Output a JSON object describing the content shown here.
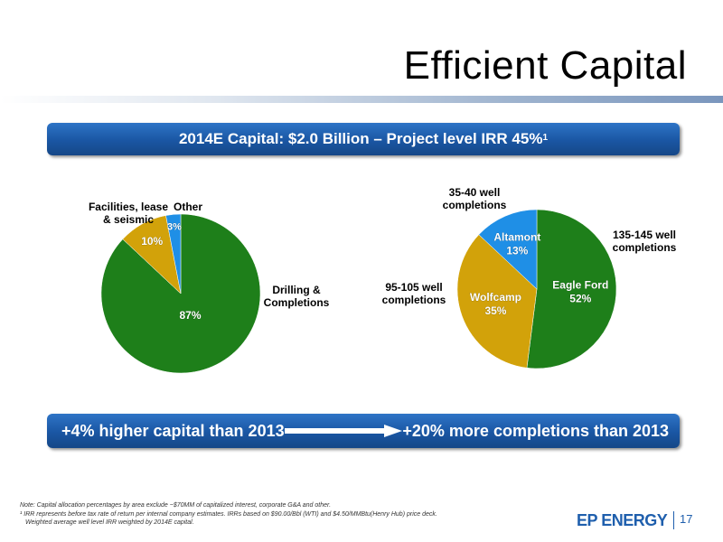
{
  "title": "Efficient Capital",
  "banner_top": {
    "text": "2014E Capital: $2.0 Billion – Project level IRR 45%",
    "superscript": "1"
  },
  "banner_bottom": {
    "left": "+4% higher capital than 2013",
    "right": "+20% more completions than 2013"
  },
  "colors": {
    "green": "#1e7f1a",
    "gold": "#d2a20a",
    "blue": "#1f8fe6",
    "banner": "#1a56a3",
    "brand": "#1f5fad"
  },
  "chart_data": [
    {
      "type": "pie",
      "title": "",
      "slices": [
        {
          "label": "Drilling & Completions",
          "value": 87,
          "display": "87%",
          "color": "#1e7f1a"
        },
        {
          "label": "Facilities, lease & seismic",
          "value": 10,
          "display": "10%",
          "color": "#d2a20a"
        },
        {
          "label": "Other",
          "value": 3,
          "display": "3%",
          "color": "#1f8fe6"
        }
      ]
    },
    {
      "type": "pie",
      "title": "",
      "slices": [
        {
          "label": "Eagle Ford",
          "value": 52,
          "display": "52%",
          "annotation": "135-145 well completions",
          "color": "#1e7f1a"
        },
        {
          "label": "Wolfcamp",
          "value": 35,
          "display": "35%",
          "annotation": "95-105 well completions",
          "color": "#d2a20a"
        },
        {
          "label": "Altamont",
          "value": 13,
          "display": "13%",
          "annotation": "35-40 well completions",
          "color": "#1f8fe6"
        }
      ]
    }
  ],
  "footnotes": {
    "note": "Note: Capital allocation percentages by area exclude ~$70MM of capitalized interest, corporate G&A and other.",
    "irr_line1": "¹ IRR represents before tax rate of return per internal company estimates.  IRRs based on $90.00/Bbl (WTI) and $4.50/MMBtu(Henry Hub) price deck.",
    "irr_line2": "Weighted average well level IRR weighted by 2014E capital."
  },
  "logo": {
    "text": "EP ENERGY"
  },
  "page_number": "17"
}
